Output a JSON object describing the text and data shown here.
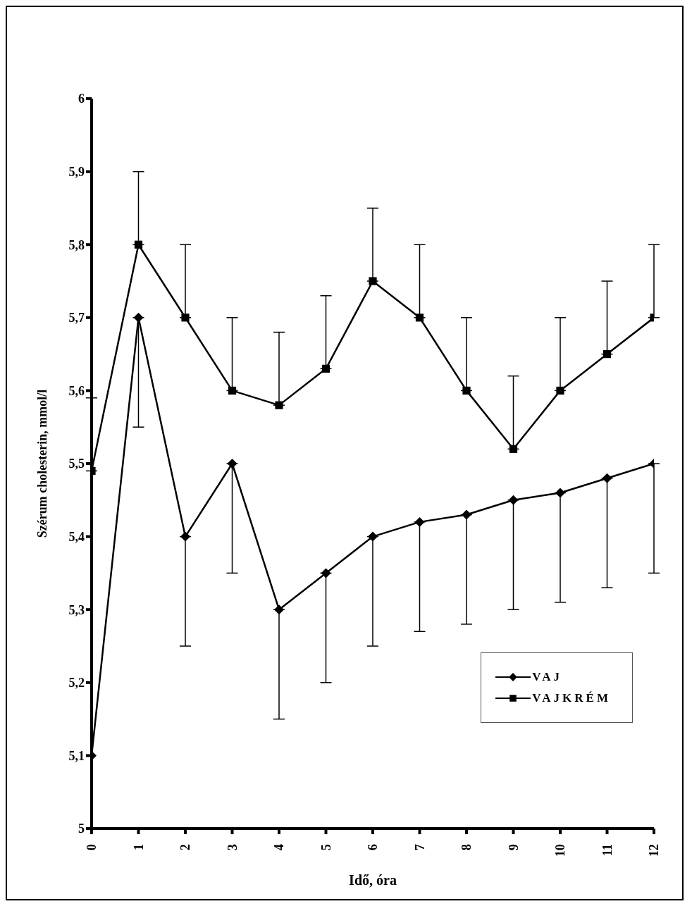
{
  "chart_data": {
    "type": "line",
    "xlabel": "Idő, óra",
    "ylabel": "Szérum cholesterin, mmol/l",
    "x": [
      0,
      1,
      2,
      3,
      4,
      5,
      6,
      7,
      8,
      9,
      10,
      11,
      12
    ],
    "series": [
      {
        "name": "VAJ",
        "color": "#000000",
        "marker": "diamond",
        "values": [
          5.1,
          5.7,
          5.4,
          5.5,
          5.3,
          5.35,
          5.4,
          5.42,
          5.43,
          5.45,
          5.46,
          5.48,
          5.5
        ],
        "errors": [
          null,
          [
            5.55,
            5.7
          ],
          [
            5.25,
            5.4
          ],
          [
            5.35,
            5.5
          ],
          [
            5.15,
            5.3
          ],
          [
            5.2,
            5.35
          ],
          [
            5.25,
            5.4
          ],
          [
            5.27,
            5.42
          ],
          [
            5.28,
            5.43
          ],
          [
            5.3,
            5.45
          ],
          [
            5.31,
            5.46
          ],
          [
            5.33,
            5.48
          ],
          [
            5.35,
            5.5
          ]
        ]
      },
      {
        "name": "VAJKRÉM",
        "color": "#000000",
        "marker": "square",
        "values": [
          5.49,
          5.8,
          5.7,
          5.6,
          5.58,
          5.63,
          5.75,
          5.7,
          5.6,
          5.52,
          5.6,
          5.65,
          5.7
        ],
        "errors": [
          [
            5.49,
            5.59
          ],
          [
            5.8,
            5.9
          ],
          [
            5.7,
            5.8
          ],
          [
            5.6,
            5.7
          ],
          [
            5.58,
            5.68
          ],
          [
            5.63,
            5.73
          ],
          [
            5.75,
            5.85
          ],
          [
            5.7,
            5.8
          ],
          [
            5.6,
            5.7
          ],
          [
            5.52,
            5.62
          ],
          [
            5.6,
            5.7
          ],
          [
            5.65,
            5.75
          ],
          [
            5.7,
            5.8
          ]
        ]
      }
    ],
    "xlim": [
      0,
      12
    ],
    "xticks": [
      0,
      1,
      2,
      3,
      4,
      5,
      6,
      7,
      8,
      9,
      10,
      11,
      12
    ],
    "ylim": [
      5,
      6
    ],
    "yticks": [
      5,
      {
        "value": 5.1,
        "label": "5,1"
      },
      {
        "value": 5.2,
        "label": "5,2"
      },
      {
        "value": 5.3,
        "label": "5,3"
      },
      {
        "value": 5.4,
        "label": "5,4"
      },
      {
        "value": 5.5,
        "label": "5,5"
      },
      {
        "value": 5.6,
        "label": "5,6"
      },
      {
        "value": 5.7,
        "label": "5,7"
      },
      {
        "value": 5.8,
        "label": "5,8"
      },
      {
        "value": 5.9,
        "label": "5,9"
      },
      6
    ],
    "legend": "bottom right",
    "line_style": "solid"
  }
}
